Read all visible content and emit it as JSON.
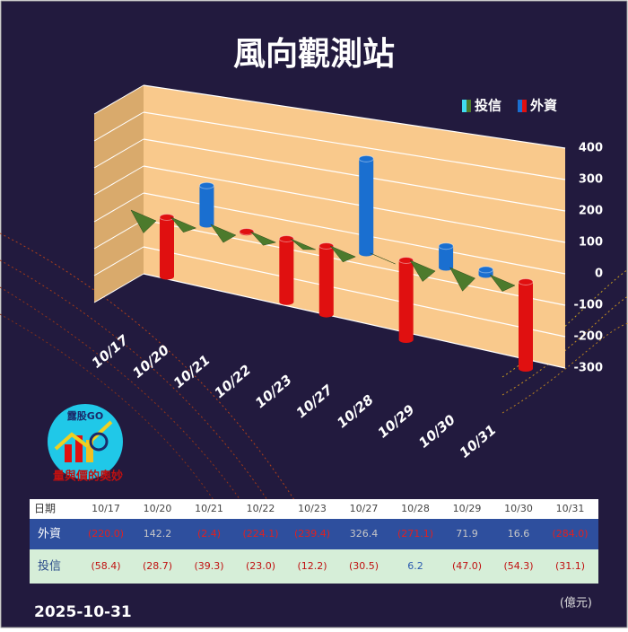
{
  "chart_data": {
    "type": "bar3d",
    "title": "風向觀測站",
    "categories": [
      "10/17",
      "10/20",
      "10/21",
      "10/22",
      "10/23",
      "10/27",
      "10/28",
      "10/29",
      "10/30",
      "10/31"
    ],
    "series": [
      {
        "name": "投信",
        "color": "#40dcef",
        "negative_color": "#4c7a2c",
        "values": [
          -58.4,
          -28.7,
          -39.3,
          -23.0,
          -12.2,
          -30.5,
          6.2,
          -47.0,
          -54.3,
          -31.1
        ],
        "value_labels": [
          "(58.4)",
          "(28.7)",
          "(39.3)",
          "(23.0)",
          "(12.2)",
          "(30.5)",
          "6.2",
          "(47.0)",
          "(54.3)",
          "(31.1)"
        ]
      },
      {
        "name": "外資",
        "color": "#1a6fd0",
        "negative_color": "#e01010",
        "values": [
          -220.0,
          142.2,
          -2.4,
          -224.1,
          -239.4,
          326.4,
          -271.1,
          71.9,
          16.6,
          -284.0
        ],
        "value_labels": [
          "(220.0)",
          "142.2",
          "(2.4)",
          "(224.1)",
          "(239.4)",
          "326.4",
          "(271.1)",
          "71.9",
          "16.6",
          "(284.0)"
        ]
      }
    ],
    "ylim": [
      -300,
      400
    ],
    "yticks": [
      400,
      300,
      200,
      100,
      0,
      -100,
      -200,
      -300
    ],
    "grid": true,
    "legend": "top-right",
    "table_header": "日期",
    "date": "2025-10-31",
    "unit": "(億元)",
    "logo_text": "露股GO",
    "logo_caption": "量與價的奧妙"
  }
}
